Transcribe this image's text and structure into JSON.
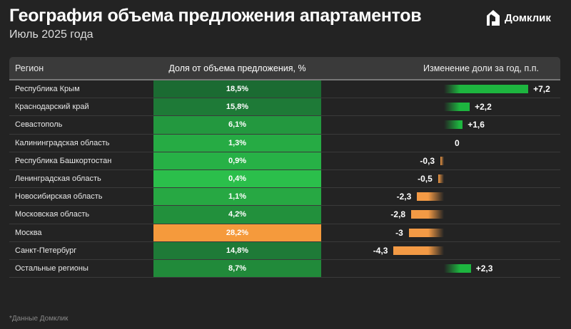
{
  "header": {
    "title": "География объема предложения апартаментов",
    "subtitle": "Июль 2025 года",
    "logo_text": "Домклик"
  },
  "chart_data": {
    "type": "table",
    "title": "География объема предложения апартаментов",
    "columns": [
      "Регион",
      "Доля от объема предложения, %",
      "Изменение доли за год, п.п."
    ],
    "rows": [
      {
        "region": "Республика Крым",
        "share": "18,5%",
        "change": 7.2,
        "change_label": "+7,2",
        "color": "#1b6b32"
      },
      {
        "region": "Краснодарский край",
        "share": "15,8%",
        "change": 2.2,
        "change_label": "+2,2",
        "color": "#1e7a37"
      },
      {
        "region": "Севастополь",
        "share": "6,1%",
        "change": 1.6,
        "change_label": "+1,6",
        "color": "#23983f"
      },
      {
        "region": "Калининградская область",
        "share": "1,3%",
        "change": 0,
        "change_label": "0",
        "color": "#26ab44"
      },
      {
        "region": "Республика Башкортостан",
        "share": "0,9%",
        "change": -0.3,
        "change_label": "-0,3",
        "color": "#27b146"
      },
      {
        "region": "Ленинградская область",
        "share": "0,4%",
        "change": -0.5,
        "change_label": "-0,5",
        "color": "#2bbf4b"
      },
      {
        "region": "Новосибирская область",
        "share": "1,1%",
        "change": -2.3,
        "change_label": "-2,3",
        "color": "#27a843"
      },
      {
        "region": "Московская область",
        "share": "4,2%",
        "change": -2.8,
        "change_label": "-2,8",
        "color": "#22903c"
      },
      {
        "region": "Москва",
        "share": "28,2%",
        "change": -3,
        "change_label": "-3",
        "color": "#f59a3c"
      },
      {
        "region": "Санкт-Петербург",
        "share": "14,8%",
        "change": -4.3,
        "change_label": "-4,3",
        "color": "#1e7a37"
      },
      {
        "region": "Остальные регионы",
        "share": "8,7%",
        "change": 2.3,
        "change_label": "+2,3",
        "color": "#218a3a"
      }
    ],
    "positive_color": "#1db53f",
    "negative_color": "#f39a45"
  },
  "footer": "*Данные Домклик"
}
